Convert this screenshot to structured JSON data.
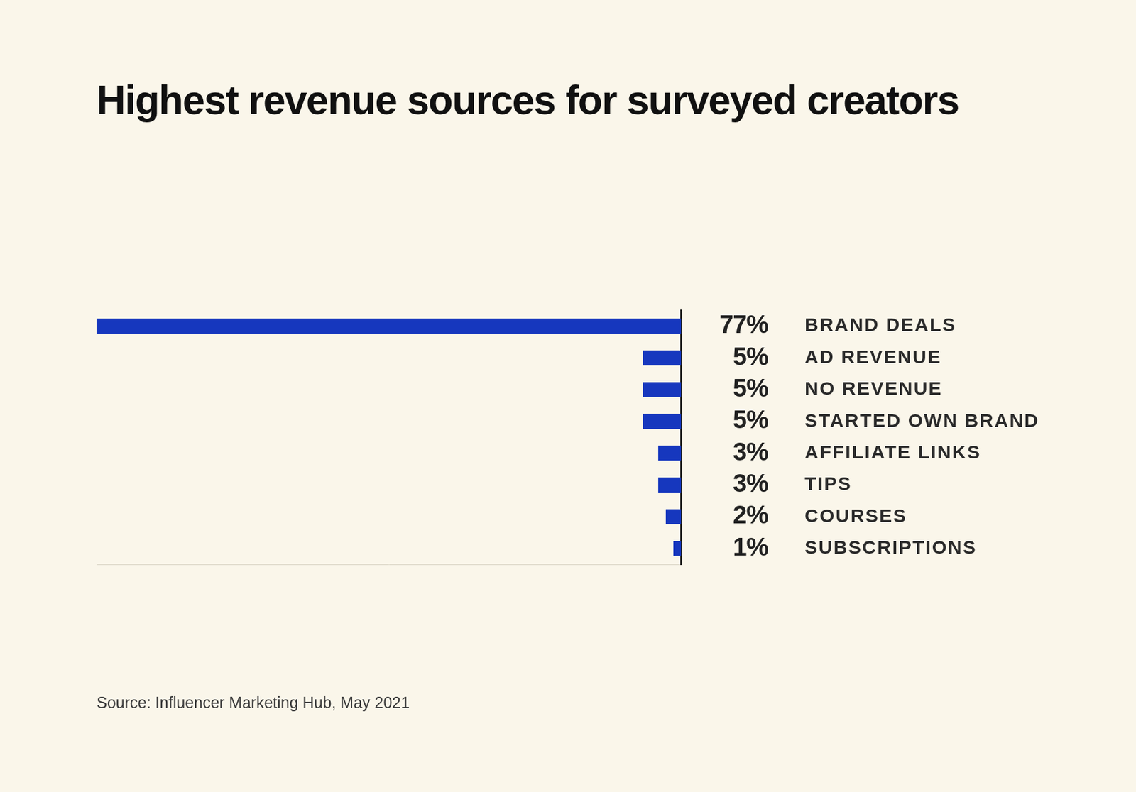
{
  "chart_data": {
    "type": "bar",
    "title": "Highest revenue sources for surveyed creators",
    "source": "Source: Influencer Marketing Hub, May 2021",
    "orientation": "horizontal",
    "categories": [
      "BRAND DEALS",
      "AD REVENUE",
      "NO REVENUE",
      "STARTED OWN BRAND",
      "AFFILIATE LINKS",
      "TIPS",
      "COURSES",
      "SUBSCRIPTIONS"
    ],
    "values": [
      77,
      5,
      5,
      5,
      3,
      3,
      2,
      1
    ],
    "value_labels": [
      "77%",
      "5%",
      "5%",
      "5%",
      "3%",
      "3%",
      "2%",
      "1%"
    ],
    "data_labels": true,
    "color": "#1637be",
    "xlim": [
      0,
      77
    ],
    "xticks": [],
    "tick_labels": "y",
    "grid": false
  }
}
